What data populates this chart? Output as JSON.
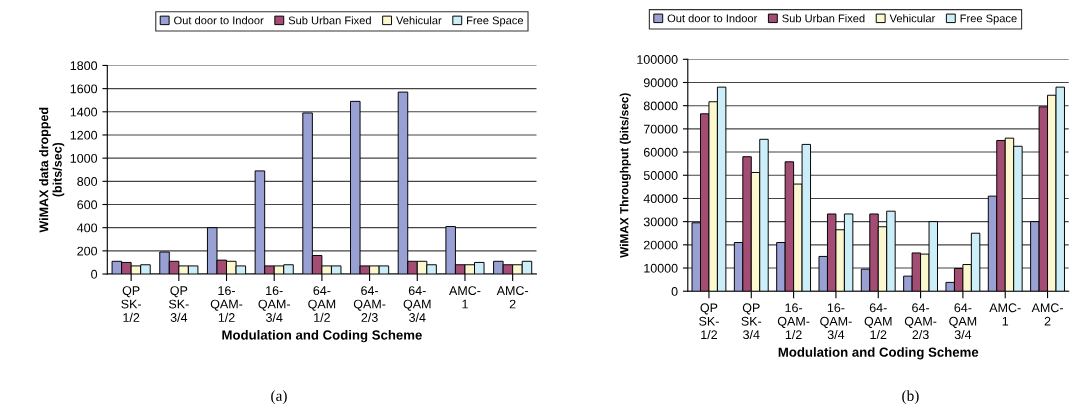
{
  "chart_data": [
    {
      "type": "bar",
      "xlabel": "Modulation and Coding Scheme",
      "ylabel": "WiMAX data dropped\n(bits/sec)",
      "categories": [
        "QP\nSK-\n1/2",
        "QP\nSK-\n3/4",
        "16-\nQAM-\n1/2",
        "16-\nQAM-\n3/4",
        "64-\nQAM\n1/2",
        "64-\nQAM-\n2/3",
        "64-\nQAM\n3/4",
        "AMC-\n1",
        "AMC-\n2"
      ],
      "series": [
        {
          "name": "Out door to Indoor",
          "color": "#99a0d4",
          "values": [
            110,
            190,
            400,
            890,
            1390,
            1490,
            1570,
            410,
            110
          ]
        },
        {
          "name": "Sub Urban Fixed",
          "color": "#a34d74",
          "values": [
            100,
            110,
            120,
            70,
            160,
            70,
            110,
            80,
            80
          ]
        },
        {
          "name": "Vehicular",
          "color": "#fbf8d0",
          "values": [
            70,
            70,
            110,
            70,
            70,
            70,
            110,
            80,
            80
          ]
        },
        {
          "name": "Free Space",
          "color": "#cceef8",
          "values": [
            80,
            70,
            70,
            80,
            70,
            70,
            80,
            100,
            110
          ]
        }
      ],
      "ylim": [
        0,
        1800
      ],
      "yticks": [
        0,
        200,
        400,
        600,
        800,
        1000,
        1200,
        1400,
        1600,
        1800
      ],
      "grid": "y",
      "legend": "top",
      "annotations": [
        "(a)"
      ]
    },
    {
      "type": "bar",
      "xlabel": "Modulation and Coding Scheme",
      "ylabel": "WiMAX Throughput (bits/sec)",
      "categories": [
        "QP\nSK-\n1/2",
        "QP\nSK-\n3/4",
        "16-\nQAM-\n1/2",
        "16-\nQAM-\n3/4",
        "64-\nQAM\n1/2",
        "64-\nQAM-\n2/3",
        "64-\nQAM\n3/4",
        "AMC-\n1",
        "AMC-\n2"
      ],
      "series": [
        {
          "name": "Out door to Indoor",
          "color": "#99a0d4",
          "values": [
            29500,
            21000,
            21000,
            15000,
            9500,
            6500,
            3800,
            41000,
            30000
          ]
        },
        {
          "name": "Sub Urban Fixed",
          "color": "#a34d74",
          "values": [
            76500,
            58000,
            55800,
            33300,
            33300,
            16500,
            9800,
            65000,
            79500
          ]
        },
        {
          "name": "Vehicular",
          "color": "#fbf8d0",
          "values": [
            81700,
            51200,
            46200,
            26500,
            27800,
            16000,
            11500,
            66000,
            84500
          ]
        },
        {
          "name": "Free Space",
          "color": "#cceef8",
          "values": [
            88000,
            65500,
            63300,
            33300,
            34500,
            30000,
            25000,
            62500,
            88000
          ]
        }
      ],
      "ylim": [
        0,
        100000
      ],
      "yticks": [
        0,
        10000,
        20000,
        30000,
        40000,
        50000,
        60000,
        70000,
        80000,
        90000,
        100000
      ],
      "grid": "y",
      "legend": "top",
      "annotations": [
        "(b)"
      ]
    }
  ]
}
